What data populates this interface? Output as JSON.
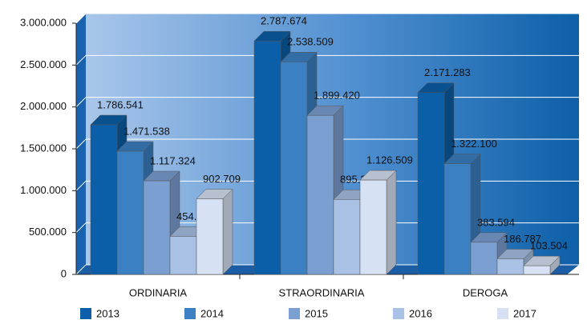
{
  "chart_data": {
    "type": "bar3d",
    "categories": [
      "ORDINARIA",
      "STRAORDINARIA",
      "DEROGA"
    ],
    "series": [
      {
        "name": "2013",
        "color": "#0b5ea8",
        "values": [
          1786541,
          2787674,
          2171283
        ],
        "value_labels": [
          "1.786.541",
          "2.787.674",
          "2.171.283"
        ]
      },
      {
        "name": "2014",
        "color": "#3b80c2",
        "values": [
          1471538,
          2538509,
          1322100
        ],
        "value_labels": [
          "1.471.538",
          "2.538.509",
          "1.322.100"
        ]
      },
      {
        "name": "2015",
        "color": "#7c9fd2",
        "values": [
          1117324,
          1899420,
          383594
        ],
        "value_labels": [
          "1.117.324",
          "1.899.420",
          "383.594"
        ]
      },
      {
        "name": "2016",
        "color": "#a8c1e5",
        "values": [
          454404,
          895238,
          186787
        ],
        "value_labels": [
          "454.404",
          "895.238",
          "186.787"
        ]
      },
      {
        "name": "2017",
        "color": "#d6e2f3",
        "values": [
          902709,
          1126509,
          103504
        ],
        "value_labels": [
          "902.709",
          "1.126.509",
          "103.504"
        ]
      }
    ],
    "ylim": [
      0,
      3000000
    ],
    "yticks": [
      0,
      {
        "value": 500000,
        "label": "500.000"
      },
      {
        "value": 1000000,
        "label": "1.000.000"
      },
      {
        "value": 1500000,
        "label": "1.500.000"
      },
      {
        "value": 2000000,
        "label": "2.000.000"
      },
      {
        "value": 2500000,
        "label": "2.500.000"
      },
      {
        "value": 3000000,
        "label": "3.000.000"
      }
    ],
    "grid": true
  }
}
